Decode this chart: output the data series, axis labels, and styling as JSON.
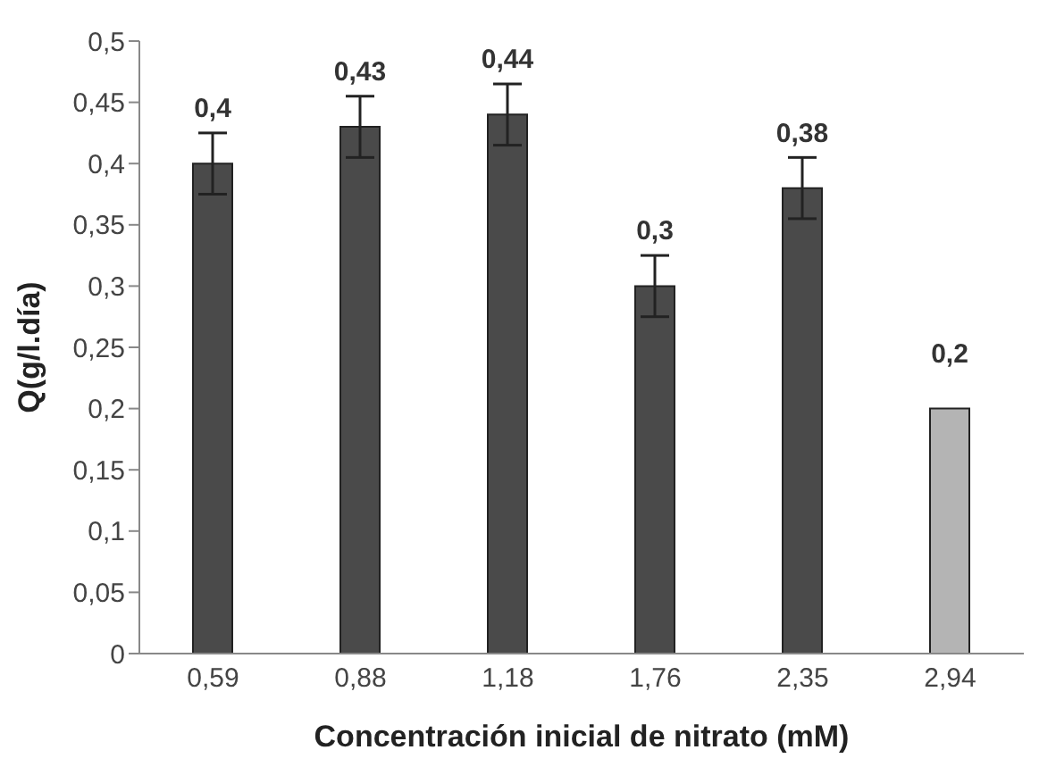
{
  "chart_data": {
    "type": "bar",
    "xlabel": "Concentración inicial de nitrato (mM)",
    "ylabel": "Q(g/l.día)",
    "categories": [
      "0,59",
      "0,88",
      "1,18",
      "1,76",
      "2,35",
      "2,94"
    ],
    "values": [
      0.4,
      0.43,
      0.44,
      0.3,
      0.38,
      0.2
    ],
    "colors": [
      "#4a4a4a",
      "#4a4a4a",
      "#4a4a4a",
      "#4a4a4a",
      "#4a4a4a",
      "#b4b4b4"
    ],
    "errors": [
      0.025,
      0.025,
      0.025,
      0.025,
      0.025,
      null
    ],
    "value_labels": [
      "0,4",
      "0,43",
      "0,44",
      "0,3",
      "0,38",
      "0,2"
    ],
    "ylim": [
      0,
      0.5
    ],
    "yticks": [
      {
        "value": 0,
        "label": "0"
      },
      {
        "value": 0.05,
        "label": "0,05"
      },
      {
        "value": 0.1,
        "label": "0,1"
      },
      {
        "value": 0.15,
        "label": "0,15"
      },
      {
        "value": 0.2,
        "label": "0,2"
      },
      {
        "value": 0.25,
        "label": "0,25"
      },
      {
        "value": 0.3,
        "label": "0,3"
      },
      {
        "value": 0.35,
        "label": "0,35"
      },
      {
        "value": 0.4,
        "label": "0,4"
      },
      {
        "value": 0.45,
        "label": "0,45"
      },
      {
        "value": 0.5,
        "label": "0,5"
      }
    ],
    "grid": false,
    "legend": false
  }
}
